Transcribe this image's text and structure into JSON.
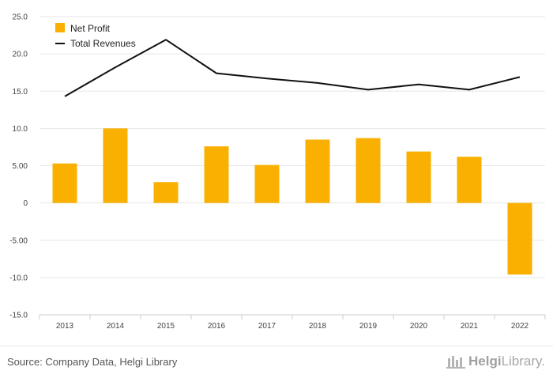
{
  "chart_data": {
    "type": "bar",
    "title": "",
    "xlabel": "",
    "ylabel": "",
    "ylim": [
      -15,
      25
    ],
    "yticks": [
      25,
      20,
      15,
      10,
      5,
      0,
      -5,
      -10,
      -15
    ],
    "ytick_labels": [
      "25.0",
      "20.0",
      "15.0",
      "10.0",
      "5.00",
      "0",
      "-5.00",
      "-10.0",
      "-15.0"
    ],
    "categories": [
      "2013",
      "2014",
      "2015",
      "2016",
      "2017",
      "2018",
      "2019",
      "2020",
      "2021",
      "2022"
    ],
    "series": [
      {
        "name": "Net Profit",
        "kind": "bar",
        "color": "#f9b000",
        "values": [
          5.3,
          10.0,
          2.8,
          7.6,
          5.1,
          8.5,
          8.7,
          6.9,
          6.2,
          -9.6
        ]
      },
      {
        "name": "Total Revenues",
        "kind": "line",
        "color": "#111111",
        "values": [
          14.3,
          18.2,
          21.9,
          17.4,
          16.7,
          16.1,
          15.2,
          15.9,
          15.2,
          16.9
        ]
      }
    ],
    "legend": "top-left",
    "grid": true
  },
  "footer": {
    "source": "Source: Company Data, Helgi Library",
    "brand_name": "Helgi",
    "brand_suffix": "Library.",
    "brand_icon": "helgi-library-logo-icon"
  }
}
